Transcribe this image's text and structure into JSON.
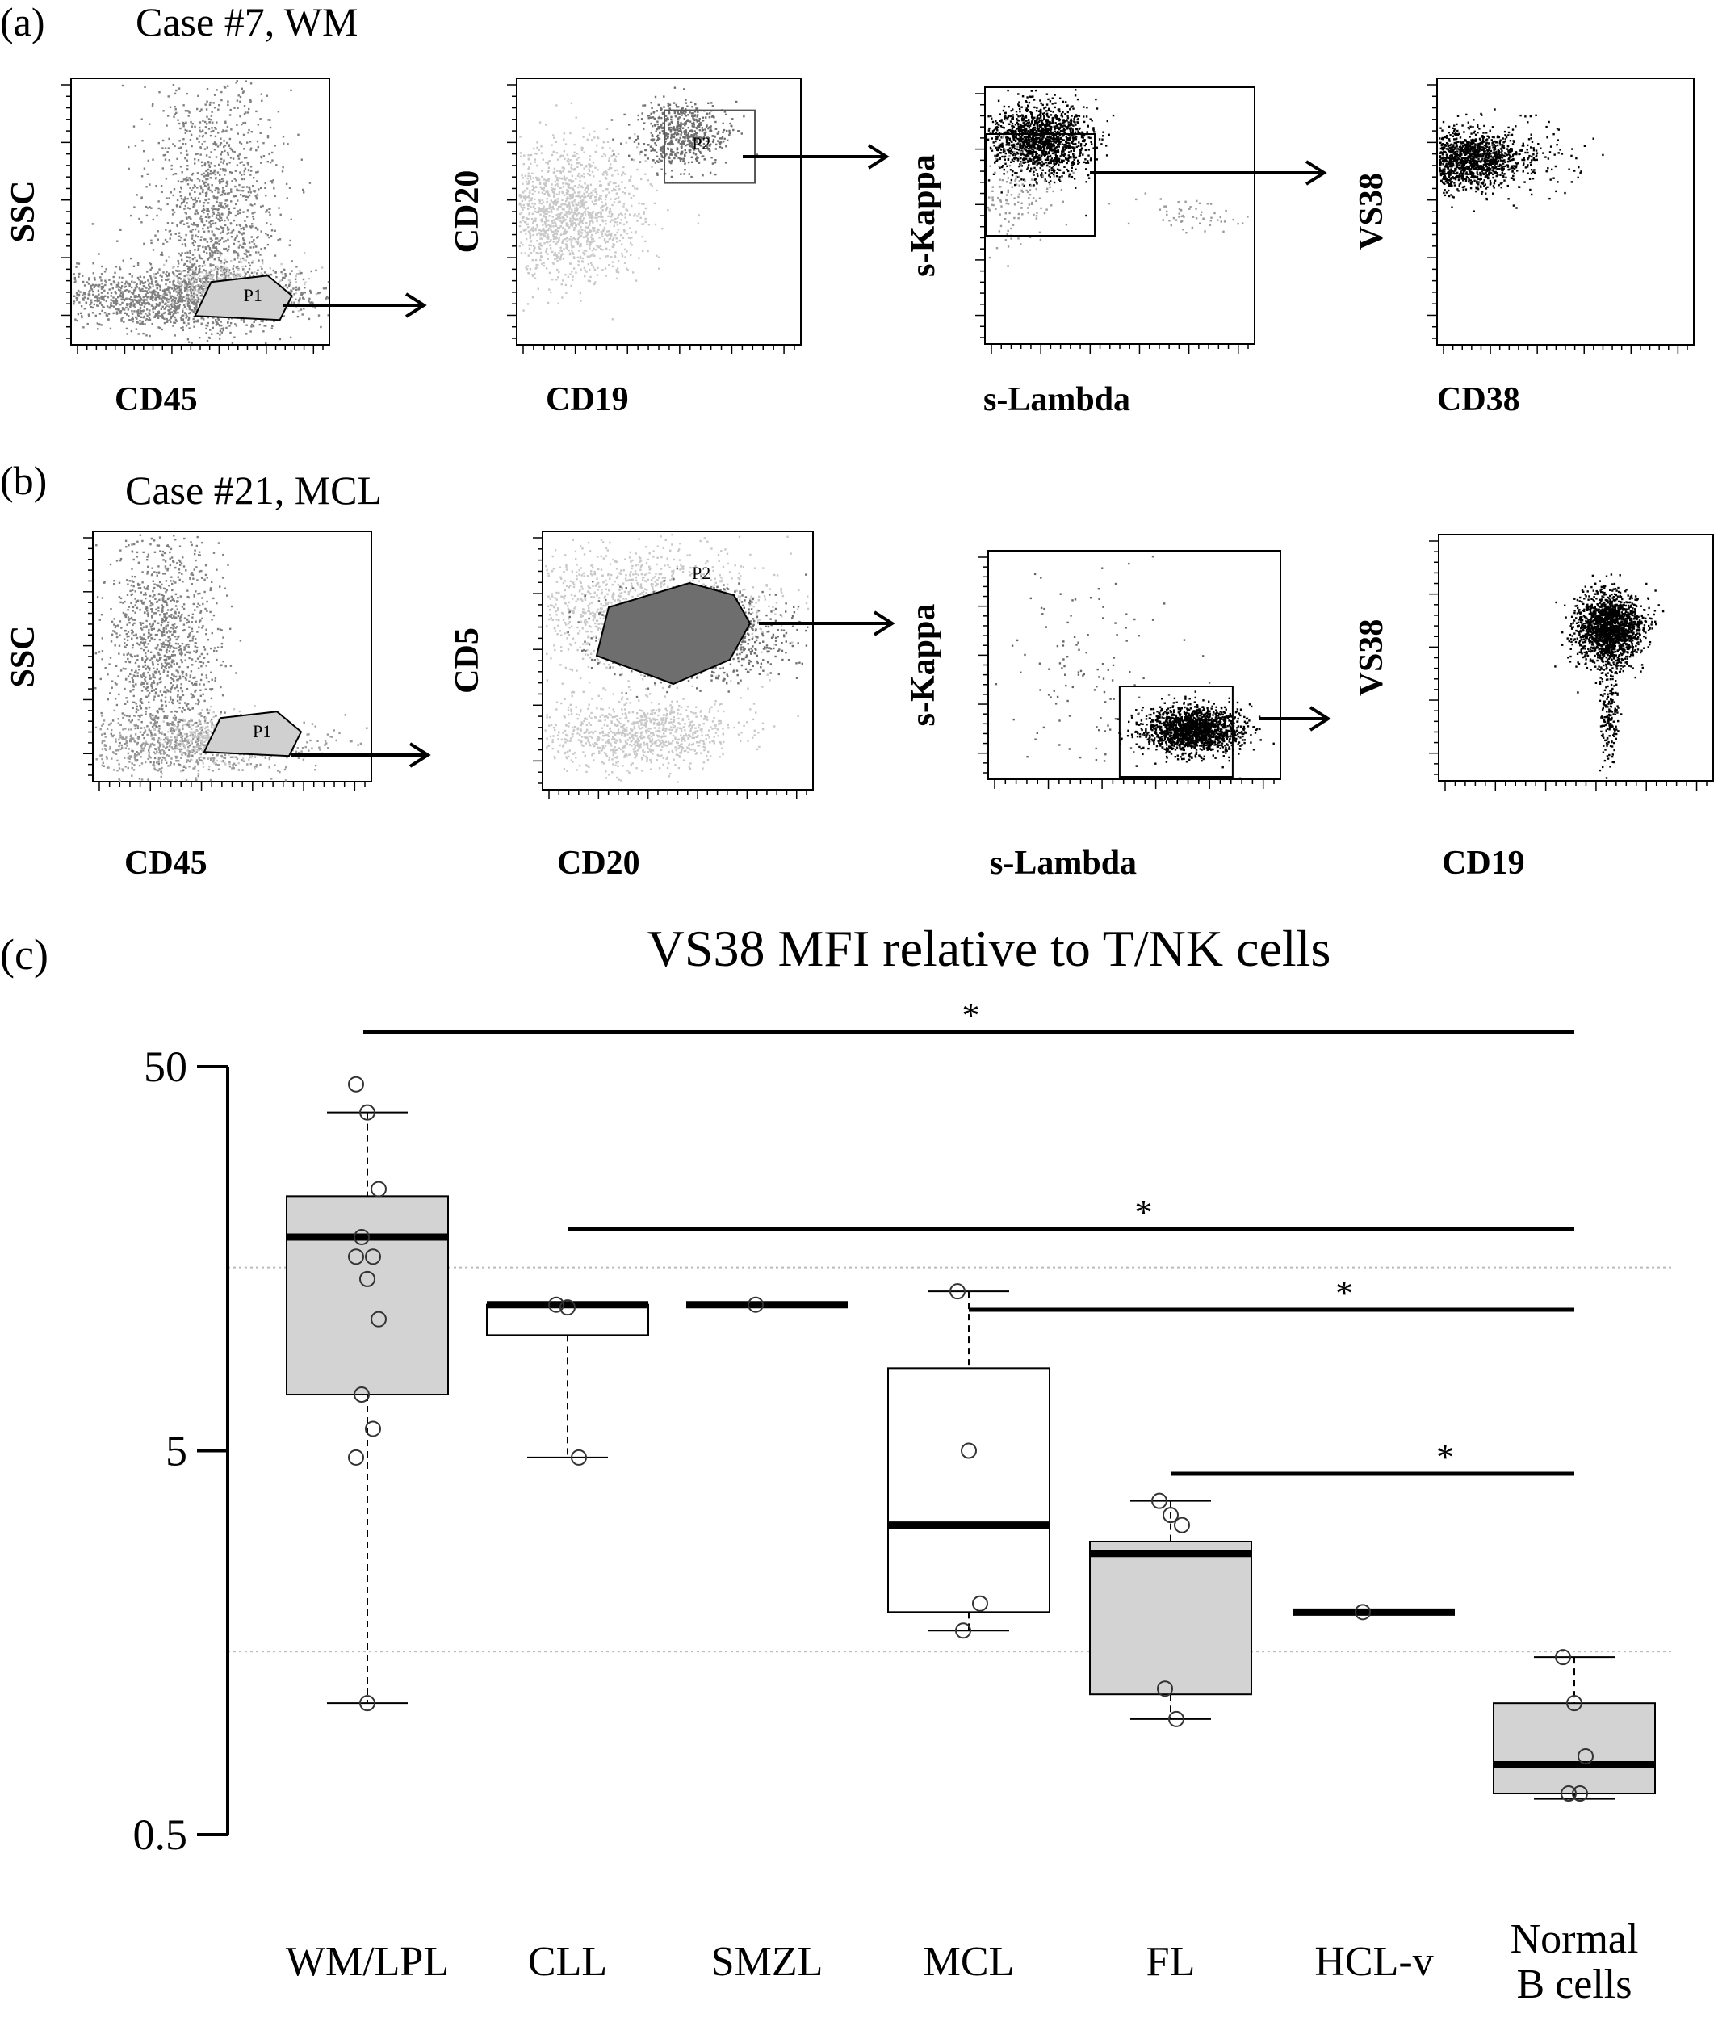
{
  "panels": [
    {
      "label": "(a)",
      "case_title": "Case #7, WM",
      "plots": [
        {
          "xlabel": "CD45",
          "ylabel": "SSC",
          "gate": "P1"
        },
        {
          "xlabel": "CD19",
          "ylabel": "CD20",
          "gate": "P2"
        },
        {
          "xlabel": "s-Lambda",
          "ylabel": "s-Kappa",
          "gate": ""
        },
        {
          "xlabel": "CD38",
          "ylabel": "VS38",
          "gate": ""
        }
      ]
    },
    {
      "label": "(b)",
      "case_title": "Case #21, MCL",
      "plots": [
        {
          "xlabel": "CD45",
          "ylabel": "SSC",
          "gate": "P1"
        },
        {
          "xlabel": "CD20",
          "ylabel": "CD5",
          "gate": "P2"
        },
        {
          "xlabel": "s-Lambda",
          "ylabel": "s-Kappa",
          "gate": ""
        },
        {
          "xlabel": "CD19",
          "ylabel": "VS38",
          "gate": ""
        }
      ]
    }
  ],
  "panel_c_label": "(c)",
  "chart_data": {
    "type": "box",
    "title": "VS38 MFI relative to T/NK cells",
    "y_scale": "log",
    "ylim": [
      0.5,
      50
    ],
    "yticks": [
      {
        "value": 50,
        "label": "50"
      },
      {
        "value": 5,
        "label": "5"
      },
      {
        "value": 0.5,
        "label": "0.5"
      }
    ],
    "gridlines": [
      15,
      1.5
    ],
    "categories": [
      "WM/LPL",
      "CLL",
      "SMZL",
      "MCL",
      "FL",
      "HCL-v",
      "Normal B cells"
    ],
    "category_labels": [
      [
        "WM/LPL"
      ],
      [
        "CLL"
      ],
      [
        "SMZL"
      ],
      [
        "MCL"
      ],
      [
        "FL"
      ],
      [
        "HCL-v"
      ],
      [
        "Normal",
        "B cells"
      ]
    ],
    "boxes": [
      {
        "category": "WM/LPL",
        "fill": "#d3d3d3",
        "whisker_low": 1.1,
        "q1": 7.0,
        "median": 18.0,
        "q3": 23.0,
        "whisker_high": 38.0,
        "points": [
          45,
          38,
          24,
          18,
          16,
          16,
          14,
          11,
          7.0,
          5.7,
          4.8,
          1.1
        ]
      },
      {
        "category": "CLL",
        "fill": "#ffffff",
        "whisker_low": 4.8,
        "q1": 10.0,
        "median": 12.0,
        "q3": 12.0,
        "whisker_high": 12.0,
        "points": [
          12.0,
          11.8,
          4.8
        ]
      },
      {
        "category": "SMZL",
        "fill": "#ffffff",
        "whisker_low": null,
        "q1": null,
        "median": 12.0,
        "q3": null,
        "whisker_high": null,
        "points": [
          12.0
        ]
      },
      {
        "category": "MCL",
        "fill": "#ffffff",
        "whisker_low": 1.7,
        "q1": 1.9,
        "median": 3.2,
        "q3": 8.2,
        "whisker_high": 13.0,
        "points": [
          13.0,
          5.0,
          2.0,
          1.7
        ]
      },
      {
        "category": "FL",
        "fill": "#d3d3d3",
        "whisker_low": 1.0,
        "q1": 1.16,
        "median": 2.7,
        "q3": 2.9,
        "whisker_high": 3.7,
        "points": [
          3.7,
          3.4,
          3.2,
          1.2,
          1.0
        ]
      },
      {
        "category": "HCL-v",
        "fill": "#ffffff",
        "whisker_low": null,
        "q1": null,
        "median": 1.9,
        "q3": null,
        "whisker_high": null,
        "points": [
          1.9
        ]
      },
      {
        "category": "Normal B cells",
        "fill": "#d3d3d3",
        "whisker_low": 0.62,
        "q1": 0.64,
        "median": 0.76,
        "q3": 1.1,
        "whisker_high": 1.45,
        "points": [
          1.45,
          1.1,
          0.8,
          0.64,
          0.64
        ]
      }
    ],
    "significance": [
      {
        "from": "WM/LPL",
        "to": "Normal B cells",
        "label": "*"
      },
      {
        "from": "CLL",
        "to": "Normal B cells",
        "label": "*"
      },
      {
        "from": "MCL",
        "to": "Normal B cells",
        "label": "*"
      },
      {
        "from": "FL",
        "to": "Normal B cells",
        "label": "*"
      }
    ]
  }
}
